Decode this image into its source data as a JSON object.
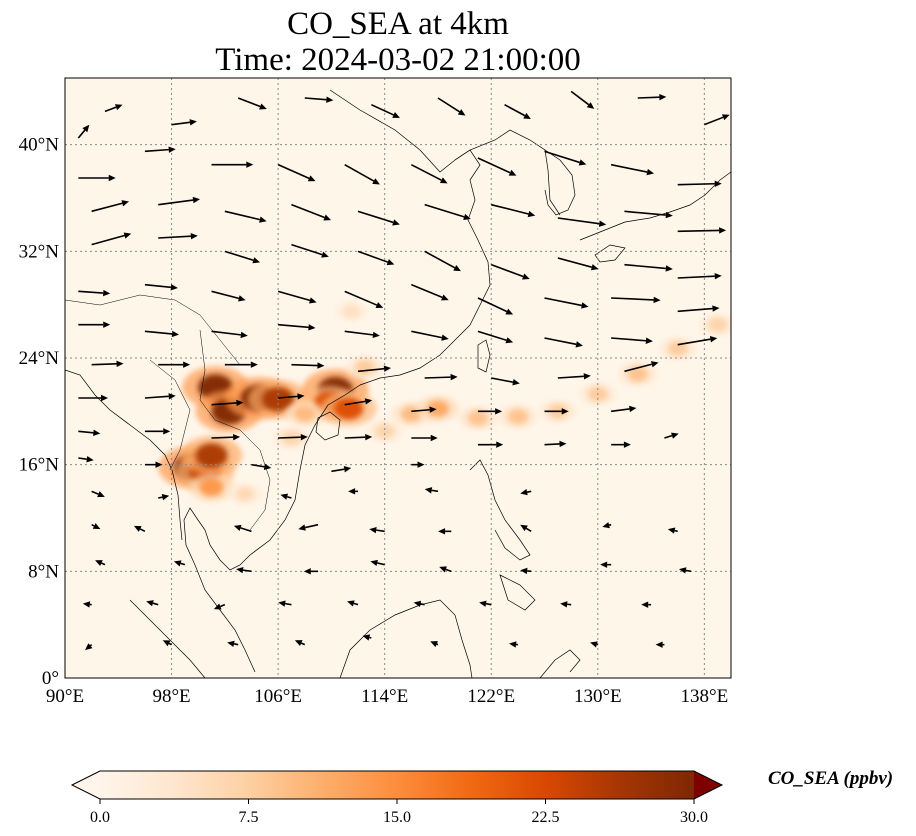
{
  "title_line1": "CO_SEA at 4km",
  "title_line2": "Time: 2024-03-02 21:00:00",
  "map": {
    "lon_range": [
      90,
      140
    ],
    "lat_range": [
      0,
      45
    ],
    "lon_ticks": [
      {
        "value": 90,
        "label": "90°E"
      },
      {
        "value": 98,
        "label": "98°E"
      },
      {
        "value": 106,
        "label": "106°E"
      },
      {
        "value": 114,
        "label": "114°E"
      },
      {
        "value": 122,
        "label": "122°E"
      },
      {
        "value": 130,
        "label": "130°E"
      },
      {
        "value": 138,
        "label": "138°E"
      }
    ],
    "lat_ticks": [
      {
        "value": 0,
        "label": "0°"
      },
      {
        "value": 8,
        "label": "8°N"
      },
      {
        "value": 16,
        "label": "16°N"
      },
      {
        "value": 24,
        "label": "24°N"
      },
      {
        "value": 32,
        "label": "32°N"
      },
      {
        "value": 40,
        "label": "40°N"
      }
    ],
    "background_color": "#fff6ea",
    "grid_color": "#8a8a8a"
  },
  "colorbar": {
    "label": "CO_SEA (ppbv)",
    "range": [
      0,
      30
    ],
    "ticks": [
      {
        "value": 0,
        "label": "0.0"
      },
      {
        "value": 7.5,
        "label": "7.5"
      },
      {
        "value": 15,
        "label": "15.0"
      },
      {
        "value": 22.5,
        "label": "22.5"
      },
      {
        "value": 30,
        "label": "30.0"
      }
    ],
    "colors": [
      "#fff5eb",
      "#fee6ce",
      "#fdd0a2",
      "#fdae6b",
      "#fd8d3c",
      "#f16913",
      "#d94801",
      "#a63603",
      "#7f2704"
    ],
    "under_color": "#fff5eb",
    "over_color": "#7f0000"
  },
  "co_plumes": [
    {
      "lon": 101.3,
      "lat": 21.8,
      "value": 30
    },
    {
      "lon": 102.3,
      "lat": 20.0,
      "value": 30
    },
    {
      "lon": 104.5,
      "lat": 21.0,
      "value": 30
    },
    {
      "lon": 106.0,
      "lat": 20.9,
      "value": 26
    },
    {
      "lon": 110.3,
      "lat": 21.6,
      "value": 30
    },
    {
      "lon": 109.8,
      "lat": 20.6,
      "value": 22
    },
    {
      "lon": 111.3,
      "lat": 20.2,
      "value": 22
    },
    {
      "lon": 99.5,
      "lat": 15.8,
      "value": 30
    },
    {
      "lon": 100.5,
      "lat": 15.5,
      "value": 24
    },
    {
      "lon": 101.0,
      "lat": 16.7,
      "value": 26
    },
    {
      "lon": 101.0,
      "lat": 14.3,
      "value": 14
    },
    {
      "lon": 103.5,
      "lat": 13.8,
      "value": 6
    },
    {
      "lon": 108.0,
      "lat": 19.8,
      "value": 10
    },
    {
      "lon": 112.5,
      "lat": 23.3,
      "value": 8
    },
    {
      "lon": 111.5,
      "lat": 27.5,
      "value": 5
    },
    {
      "lon": 116.0,
      "lat": 19.8,
      "value": 10
    },
    {
      "lon": 118.0,
      "lat": 20.2,
      "value": 12
    },
    {
      "lon": 121.0,
      "lat": 19.5,
      "value": 9
    },
    {
      "lon": 124.0,
      "lat": 19.6,
      "value": 9
    },
    {
      "lon": 127.0,
      "lat": 20.0,
      "value": 8
    },
    {
      "lon": 130.0,
      "lat": 21.3,
      "value": 8
    },
    {
      "lon": 133.0,
      "lat": 22.8,
      "value": 9
    },
    {
      "lon": 136.0,
      "lat": 24.7,
      "value": 8
    },
    {
      "lon": 139.0,
      "lat": 26.5,
      "value": 7
    },
    {
      "lon": 114.0,
      "lat": 18.5,
      "value": 7
    },
    {
      "lon": 107.0,
      "lat": 18.0,
      "value": 7
    }
  ],
  "wind_vectors": [
    {
      "lon": 91,
      "lat": 40.5,
      "u": 1,
      "v": 1.2
    },
    {
      "lon": 93,
      "lat": 42.5,
      "u": 1.6,
      "v": 0.6
    },
    {
      "lon": 98,
      "lat": 41.5,
      "u": 2.3,
      "v": 0.3
    },
    {
      "lon": 103,
      "lat": 43.5,
      "u": 2.6,
      "v": -1.0
    },
    {
      "lon": 108,
      "lat": 43.5,
      "u": 2.6,
      "v": -0.2
    },
    {
      "lon": 113,
      "lat": 43.0,
      "u": 2.6,
      "v": -1.2
    },
    {
      "lon": 118,
      "lat": 43.5,
      "u": 2.5,
      "v": -1.6
    },
    {
      "lon": 123,
      "lat": 43.0,
      "u": 2.4,
      "v": -1.3
    },
    {
      "lon": 128,
      "lat": 44.0,
      "u": 2.1,
      "v": -1.6
    },
    {
      "lon": 133,
      "lat": 43.5,
      "u": 2.6,
      "v": 0.1
    },
    {
      "lon": 138,
      "lat": 41.5,
      "u": 2.3,
      "v": 0.9
    },
    {
      "lon": 91,
      "lat": 37.5,
      "u": 3.4,
      "v": 0
    },
    {
      "lon": 96,
      "lat": 39.5,
      "u": 2.8,
      "v": 0.2
    },
    {
      "lon": 101,
      "lat": 38.5,
      "u": 3.8,
      "v": 0
    },
    {
      "lon": 106,
      "lat": 38.5,
      "u": 3.4,
      "v": -1.5
    },
    {
      "lon": 111,
      "lat": 38.5,
      "u": 3.2,
      "v": -1.8
    },
    {
      "lon": 116,
      "lat": 38.5,
      "u": 3.3,
      "v": -1.7
    },
    {
      "lon": 121,
      "lat": 39.0,
      "u": 3.5,
      "v": -1.6
    },
    {
      "lon": 126,
      "lat": 39.5,
      "u": 3.8,
      "v": -1.2
    },
    {
      "lon": 131,
      "lat": 38.5,
      "u": 3.9,
      "v": -0.8
    },
    {
      "lon": 136,
      "lat": 37.0,
      "u": 4.0,
      "v": 0.1
    },
    {
      "lon": 92,
      "lat": 35.0,
      "u": 3.4,
      "v": 0.9
    },
    {
      "lon": 97,
      "lat": 35.5,
      "u": 3.8,
      "v": 0.5
    },
    {
      "lon": 102,
      "lat": 35.0,
      "u": 3.8,
      "v": -0.9
    },
    {
      "lon": 107,
      "lat": 35.5,
      "u": 3.6,
      "v": -1.4
    },
    {
      "lon": 112,
      "lat": 35.0,
      "u": 3.8,
      "v": -1.2
    },
    {
      "lon": 117,
      "lat": 35.5,
      "u": 4.2,
      "v": -1.3
    },
    {
      "lon": 122,
      "lat": 35.5,
      "u": 4.0,
      "v": -1.0
    },
    {
      "lon": 127,
      "lat": 34.5,
      "u": 4.4,
      "v": -0.6
    },
    {
      "lon": 132,
      "lat": 35.0,
      "u": 4.4,
      "v": -0.4
    },
    {
      "lon": 136,
      "lat": 33.5,
      "u": 4.4,
      "v": 0.1
    },
    {
      "lon": 92,
      "lat": 32.5,
      "u": 3.6,
      "v": 1.0
    },
    {
      "lon": 97,
      "lat": 33.0,
      "u": 3.6,
      "v": 0.2
    },
    {
      "lon": 102,
      "lat": 32.0,
      "u": 3.2,
      "v": -1.0
    },
    {
      "lon": 107,
      "lat": 32.5,
      "u": 3.4,
      "v": -1.1
    },
    {
      "lon": 112,
      "lat": 32.0,
      "u": 3.3,
      "v": -1.2
    },
    {
      "lon": 117,
      "lat": 32.0,
      "u": 3.3,
      "v": -1.8
    },
    {
      "lon": 122,
      "lat": 31.0,
      "u": 3.5,
      "v": -1.3
    },
    {
      "lon": 127,
      "lat": 31.5,
      "u": 3.7,
      "v": -1.0
    },
    {
      "lon": 132,
      "lat": 31.0,
      "u": 4.4,
      "v": -0.4
    },
    {
      "lon": 136,
      "lat": 30.0,
      "u": 4.0,
      "v": 0.2
    },
    {
      "lon": 91,
      "lat": 29.0,
      "u": 2.9,
      "v": -0.2
    },
    {
      "lon": 96,
      "lat": 29.5,
      "u": 3.0,
      "v": -0.3
    },
    {
      "lon": 101,
      "lat": 29.0,
      "u": 3.1,
      "v": -0.8
    },
    {
      "lon": 106,
      "lat": 29.0,
      "u": 3.5,
      "v": -1.0
    },
    {
      "lon": 111,
      "lat": 29.0,
      "u": 3.5,
      "v": -1.5
    },
    {
      "lon": 116,
      "lat": 29.5,
      "u": 3.4,
      "v": -1.4
    },
    {
      "lon": 121,
      "lat": 28.5,
      "u": 3.2,
      "v": -1.5
    },
    {
      "lon": 126,
      "lat": 28.5,
      "u": 4.0,
      "v": -0.8
    },
    {
      "lon": 131,
      "lat": 28.5,
      "u": 4.5,
      "v": -0.2
    },
    {
      "lon": 136,
      "lat": 27.5,
      "u": 3.8,
      "v": 0.3
    },
    {
      "lon": 91,
      "lat": 26.5,
      "u": 2.9,
      "v": 0.0
    },
    {
      "lon": 96,
      "lat": 26.0,
      "u": 3.1,
      "v": -0.3
    },
    {
      "lon": 101,
      "lat": 26.0,
      "u": 3.3,
      "v": -0.4
    },
    {
      "lon": 106,
      "lat": 26.5,
      "u": 3.4,
      "v": -0.3
    },
    {
      "lon": 111,
      "lat": 26.0,
      "u": 3.2,
      "v": -0.4
    },
    {
      "lon": 116,
      "lat": 26.0,
      "u": 3.4,
      "v": -0.7
    },
    {
      "lon": 121,
      "lat": 26.0,
      "u": 3.2,
      "v": -1.0
    },
    {
      "lon": 126,
      "lat": 25.5,
      "u": 3.5,
      "v": -0.7
    },
    {
      "lon": 131,
      "lat": 25.5,
      "u": 3.8,
      "v": -0.3
    },
    {
      "lon": 136,
      "lat": 25.0,
      "u": 3.6,
      "v": 0.6
    },
    {
      "lon": 92,
      "lat": 23.5,
      "u": 2.9,
      "v": 0.1
    },
    {
      "lon": 97,
      "lat": 23.5,
      "u": 2.9,
      "v": 0.0
    },
    {
      "lon": 102,
      "lat": 23.5,
      "u": 3.0,
      "v": 0.0
    },
    {
      "lon": 107,
      "lat": 23.5,
      "u": 3.0,
      "v": -0.1
    },
    {
      "lon": 112,
      "lat": 23.0,
      "u": 3.0,
      "v": 0.3
    },
    {
      "lon": 117,
      "lat": 22.5,
      "u": 3.0,
      "v": 0.1
    },
    {
      "lon": 122,
      "lat": 22.5,
      "u": 2.6,
      "v": -0.5
    },
    {
      "lon": 127,
      "lat": 22.5,
      "u": 3.0,
      "v": 0.2
    },
    {
      "lon": 132,
      "lat": 23.0,
      "u": 3.1,
      "v": 0.8
    },
    {
      "lon": 91,
      "lat": 21.0,
      "u": 2.7,
      "v": 0.0
    },
    {
      "lon": 96,
      "lat": 21.0,
      "u": 2.8,
      "v": 0.2
    },
    {
      "lon": 101,
      "lat": 20.5,
      "u": 2.9,
      "v": 0.2
    },
    {
      "lon": 106,
      "lat": 21.0,
      "u": 2.4,
      "v": 0.2
    },
    {
      "lon": 111,
      "lat": 20.5,
      "u": 2.5,
      "v": 0.4
    },
    {
      "lon": 116,
      "lat": 20.0,
      "u": 2.3,
      "v": 0.2
    },
    {
      "lon": 121,
      "lat": 20.0,
      "u": 2.2,
      "v": 0.0
    },
    {
      "lon": 126,
      "lat": 20.0,
      "u": 2.2,
      "v": 0.0
    },
    {
      "lon": 131,
      "lat": 20.0,
      "u": 2.3,
      "v": 0.3
    },
    {
      "lon": 91,
      "lat": 18.5,
      "u": 2.0,
      "v": -0.2
    },
    {
      "lon": 96,
      "lat": 18.5,
      "u": 2.3,
      "v": 0.0
    },
    {
      "lon": 101,
      "lat": 18.0,
      "u": 2.6,
      "v": 0.1
    },
    {
      "lon": 106,
      "lat": 18.0,
      "u": 2.7,
      "v": 0.1
    },
    {
      "lon": 111,
      "lat": 18.0,
      "u": 2.5,
      "v": 0.1
    },
    {
      "lon": 116,
      "lat": 18.0,
      "u": 2.4,
      "v": 0.0
    },
    {
      "lon": 121,
      "lat": 17.5,
      "u": 2.3,
      "v": 0.0
    },
    {
      "lon": 126,
      "lat": 17.5,
      "u": 2.0,
      "v": 0.1
    },
    {
      "lon": 131,
      "lat": 17.5,
      "u": 1.8,
      "v": 0.0
    },
    {
      "lon": 135,
      "lat": 18.0,
      "u": 1.3,
      "v": 0.4
    },
    {
      "lon": 91,
      "lat": 16.5,
      "u": 1.4,
      "v": -0.2
    },
    {
      "lon": 96,
      "lat": 16.0,
      "u": 1.6,
      "v": 0.0
    },
    {
      "lon": 104,
      "lat": 16.0,
      "u": 1.8,
      "v": -0.3
    },
    {
      "lon": 110,
      "lat": 15.5,
      "u": 1.8,
      "v": 0.3
    },
    {
      "lon": 116,
      "lat": 16.0,
      "u": 1.2,
      "v": 0.0
    },
    {
      "lon": 92,
      "lat": 14.0,
      "u": 1.2,
      "v": -0.5
    },
    {
      "lon": 97,
      "lat": 13.5,
      "u": 1.0,
      "v": 0.2
    },
    {
      "lon": 107,
      "lat": 13.5,
      "u": -1.0,
      "v": 0.3
    },
    {
      "lon": 112,
      "lat": 14.0,
      "u": -0.9,
      "v": 0.0
    },
    {
      "lon": 118,
      "lat": 14.0,
      "u": -1.2,
      "v": 0.2
    },
    {
      "lon": 125,
      "lat": 14.0,
      "u": -1.0,
      "v": -0.2
    },
    {
      "lon": 92,
      "lat": 11.5,
      "u": 0.8,
      "v": -0.4
    },
    {
      "lon": 96,
      "lat": 11.0,
      "u": -1.0,
      "v": 0.5
    },
    {
      "lon": 104,
      "lat": 11.0,
      "u": -1.6,
      "v": 0.5
    },
    {
      "lon": 109,
      "lat": 11.5,
      "u": -1.8,
      "v": -0.4
    },
    {
      "lon": 114,
      "lat": 11.0,
      "u": -1.4,
      "v": 0.2
    },
    {
      "lon": 119,
      "lat": 11.0,
      "u": -1.2,
      "v": 0.0
    },
    {
      "lon": 125,
      "lat": 11.0,
      "u": -1.0,
      "v": 0.6
    },
    {
      "lon": 131,
      "lat": 11.5,
      "u": -0.8,
      "v": -0.2
    },
    {
      "lon": 136,
      "lat": 11.0,
      "u": -0.9,
      "v": 0.2
    },
    {
      "lon": 93,
      "lat": 8.5,
      "u": -0.9,
      "v": 0.4
    },
    {
      "lon": 99,
      "lat": 8.5,
      "u": -1.0,
      "v": 0.3
    },
    {
      "lon": 104,
      "lat": 8.0,
      "u": -1.4,
      "v": 0.2
    },
    {
      "lon": 109,
      "lat": 8.0,
      "u": -1.3,
      "v": 0.0
    },
    {
      "lon": 114,
      "lat": 8.5,
      "u": -1.3,
      "v": 0.3
    },
    {
      "lon": 119,
      "lat": 8.0,
      "u": -1.1,
      "v": 0.4
    },
    {
      "lon": 125,
      "lat": 8.0,
      "u": -1.0,
      "v": 0.1
    },
    {
      "lon": 131,
      "lat": 8.5,
      "u": -1.0,
      "v": 0.0
    },
    {
      "lon": 137,
      "lat": 8.0,
      "u": -1.1,
      "v": 0.2
    },
    {
      "lon": 92,
      "lat": 5.5,
      "u": -0.8,
      "v": 0.1
    },
    {
      "lon": 97,
      "lat": 5.5,
      "u": -1.1,
      "v": 0.3
    },
    {
      "lon": 102,
      "lat": 5.5,
      "u": -1.0,
      "v": -0.4
    },
    {
      "lon": 107,
      "lat": 5.5,
      "u": -1.2,
      "v": 0.2
    },
    {
      "lon": 112,
      "lat": 5.5,
      "u": -1.0,
      "v": 0.3
    },
    {
      "lon": 117,
      "lat": 5.5,
      "u": -1.0,
      "v": 0.2
    },
    {
      "lon": 122,
      "lat": 5.5,
      "u": -1.1,
      "v": 0.2
    },
    {
      "lon": 128,
      "lat": 5.5,
      "u": -1.0,
      "v": 0.1
    },
    {
      "lon": 134,
      "lat": 5.5,
      "u": -0.9,
      "v": 0.0
    },
    {
      "lon": 92,
      "lat": 2.5,
      "u": -0.6,
      "v": -0.5
    },
    {
      "lon": 98,
      "lat": 2.5,
      "u": -0.8,
      "v": 0.4
    },
    {
      "lon": 103,
      "lat": 2.5,
      "u": -1.0,
      "v": 0.2
    },
    {
      "lon": 108,
      "lat": 2.5,
      "u": -0.9,
      "v": 0.4
    },
    {
      "lon": 113,
      "lat": 3.0,
      "u": -0.8,
      "v": 0.2
    },
    {
      "lon": 118,
      "lat": 2.5,
      "u": -0.7,
      "v": 0.3
    },
    {
      "lon": 124,
      "lat": 2.5,
      "u": -0.8,
      "v": 0.1
    },
    {
      "lon": 130,
      "lat": 2.5,
      "u": -0.7,
      "v": 0.2
    },
    {
      "lon": 135,
      "lat": 2.5,
      "u": -0.8,
      "v": 0.0
    }
  ]
}
